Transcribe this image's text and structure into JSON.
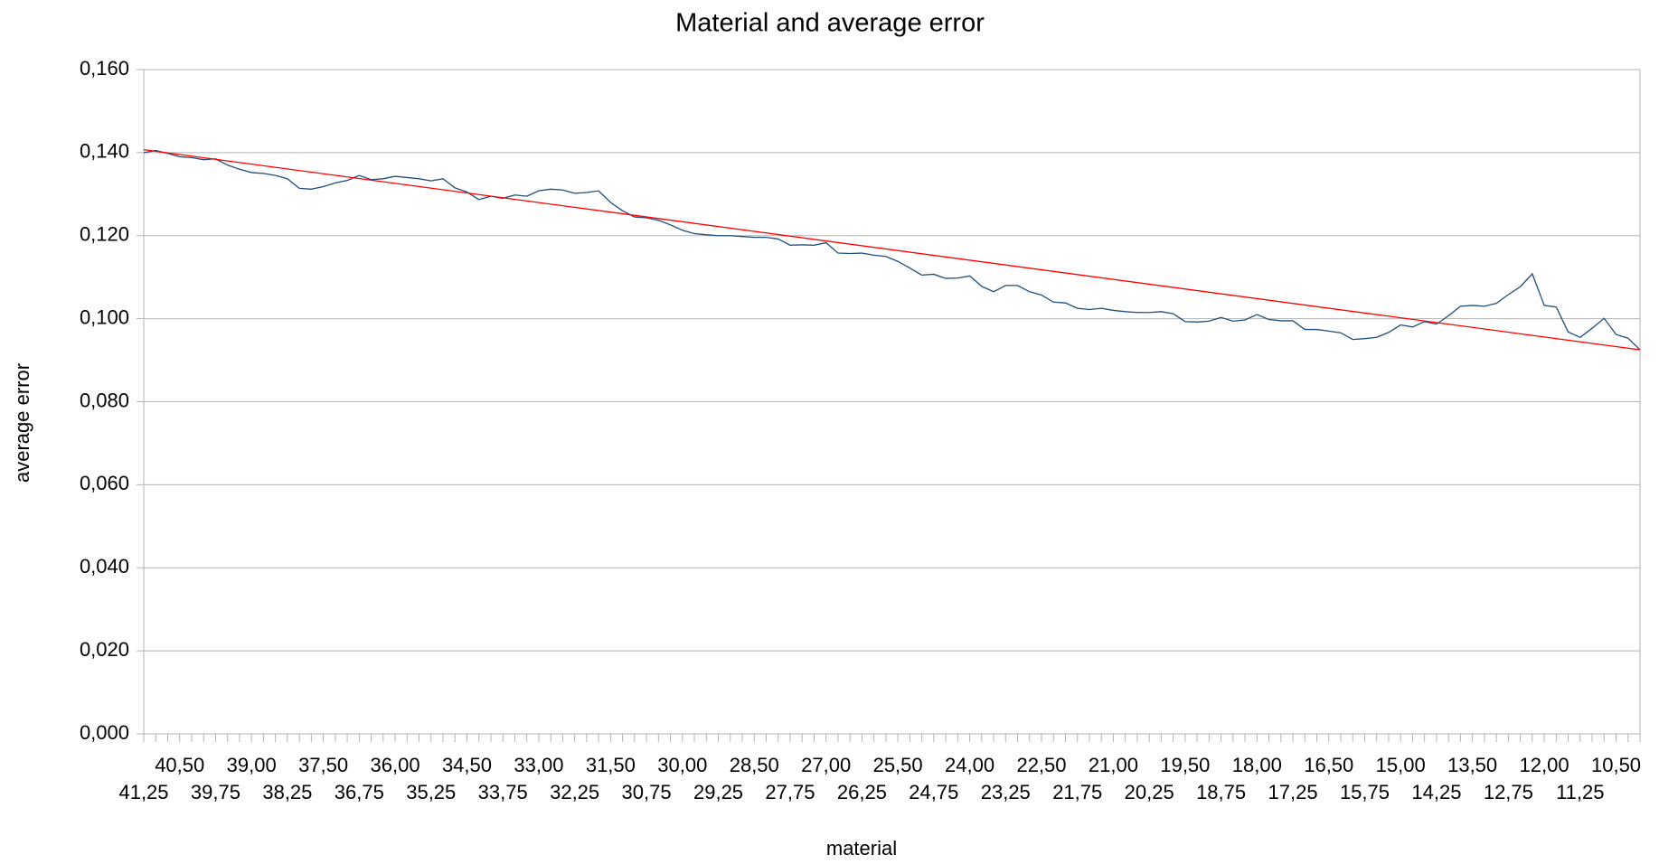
{
  "chart_data": {
    "type": "line",
    "title": "Material and average error",
    "x_label": "material",
    "y_label": "average error",
    "categories": [
      "41,25",
      null,
      null,
      "40,50",
      null,
      null,
      "39,75",
      null,
      null,
      "39,00",
      null,
      null,
      "38,25",
      null,
      null,
      "37,50",
      null,
      null,
      "36,75",
      null,
      null,
      "36,00",
      null,
      null,
      "35,25",
      null,
      null,
      "34,50",
      null,
      null,
      "33,75",
      null,
      null,
      "33,00",
      null,
      null,
      "32,25",
      null,
      null,
      "31,50",
      null,
      null,
      "30,75",
      null,
      null,
      "30,00",
      null,
      null,
      "29,25",
      null,
      null,
      "28,50",
      null,
      null,
      "27,75",
      null,
      null,
      "27,00",
      null,
      null,
      "26,25",
      null,
      null,
      "25,50",
      null,
      null,
      "24,75",
      null,
      null,
      "24,00",
      null,
      null,
      "23,25",
      null,
      null,
      "22,50",
      null,
      null,
      "21,75",
      null,
      null,
      "21,00",
      null,
      null,
      "20,25",
      null,
      null,
      "19,50",
      null,
      null,
      "18,75",
      null,
      null,
      "18,00",
      null,
      null,
      "17,25",
      null,
      null,
      "16,50",
      null,
      null,
      "15,75",
      null,
      null,
      "15,00",
      null,
      null,
      "14,25",
      null,
      null,
      "13,50",
      null,
      null,
      "12,75",
      null,
      null,
      "12,00",
      null,
      null,
      "11,25",
      null,
      null,
      "10,50",
      null,
      null
    ],
    "series": [
      {
        "color": "#1f4e79",
        "values": [
          0.14,
          0.1405,
          0.1398,
          0.139,
          0.1388,
          0.1383,
          0.1385,
          0.137,
          0.136,
          0.1352,
          0.135,
          0.1345,
          0.1337,
          0.1314,
          0.1312,
          0.1318,
          0.1327,
          0.1333,
          0.1345,
          0.1335,
          0.1337,
          0.1343,
          0.134,
          0.1337,
          0.1332,
          0.1337,
          0.1315,
          0.1305,
          0.1287,
          0.1295,
          0.129,
          0.1298,
          0.1295,
          0.1308,
          0.1312,
          0.131,
          0.1302,
          0.1304,
          0.1308,
          0.128,
          0.126,
          0.1245,
          0.1243,
          0.1237,
          0.1226,
          0.1213,
          0.1205,
          0.1202,
          0.12,
          0.12,
          0.1198,
          0.1196,
          0.1196,
          0.1192,
          0.1177,
          0.1178,
          0.1177,
          0.1183,
          0.1158,
          0.1157,
          0.1158,
          0.1153,
          0.115,
          0.1138,
          0.1122,
          0.1105,
          0.1107,
          0.1097,
          0.1098,
          0.1103,
          0.1078,
          0.1065,
          0.108,
          0.108,
          0.1065,
          0.1057,
          0.104,
          0.1038,
          0.1025,
          0.1022,
          0.1025,
          0.102,
          0.1017,
          0.1015,
          0.1015,
          0.1017,
          0.1012,
          0.0993,
          0.0992,
          0.0994,
          0.1003,
          0.0994,
          0.0997,
          0.101,
          0.0998,
          0.0995,
          0.0995,
          0.0974,
          0.0974,
          0.097,
          0.0966,
          0.095,
          0.0952,
          0.0955,
          0.0967,
          0.0985,
          0.098,
          0.0993,
          0.0987,
          0.1007,
          0.103,
          0.1032,
          0.103,
          0.1037,
          0.1058,
          0.1077,
          0.1108,
          0.1032,
          0.1028,
          0.0968,
          0.0955,
          0.0977,
          0.1001,
          0.0962,
          0.0953,
          0.0925
        ]
      }
    ],
    "trendline": {
      "color": "#ff0000",
      "start": 0.1407,
      "end": 0.0925
    },
    "ylim": [
      0,
      0.16
    ],
    "yticks": [
      {
        "value": 0,
        "label": "0,000"
      },
      {
        "value": 0.02,
        "label": "0,020"
      },
      {
        "value": 0.04,
        "label": "0,040"
      },
      {
        "value": 0.06,
        "label": "0,060"
      },
      {
        "value": 0.08,
        "label": "0,080"
      },
      {
        "value": 0.1,
        "label": "0,100"
      },
      {
        "value": 0.12,
        "label": "0,120"
      },
      {
        "value": 0.14,
        "label": "0,140"
      },
      {
        "value": 0.16,
        "label": "0,160"
      }
    ],
    "grid": true
  }
}
